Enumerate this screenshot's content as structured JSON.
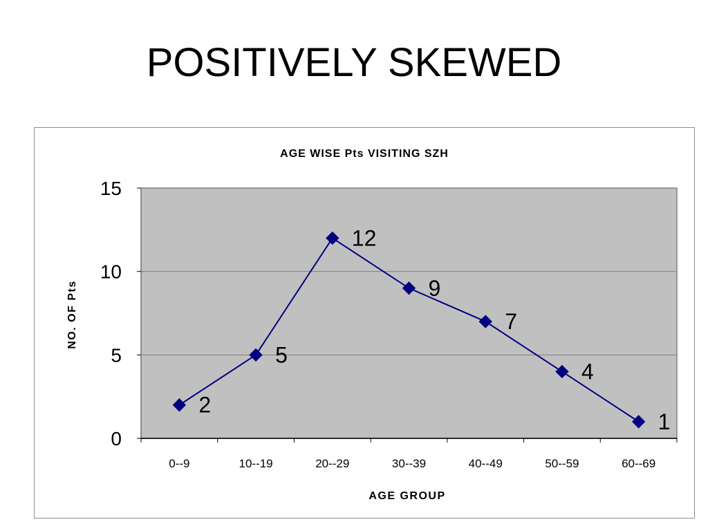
{
  "slide": {
    "title": "POSITIVELY SKEWED"
  },
  "colors": {
    "plot_bg": "#c0c0c0",
    "line": "#00007f",
    "marker": "#000080",
    "grid": "#808080",
    "text": "#000000"
  },
  "chart_data": {
    "type": "line",
    "title": "AGE WISE Pts VISITING SZH",
    "xlabel": "AGE GROUP",
    "ylabel": "NO. OF Pts",
    "categories": [
      "0--9",
      "10--19",
      "20--29",
      "30--39",
      "40--49",
      "50--59",
      "60--69"
    ],
    "series": [
      {
        "values": [
          2,
          5,
          12,
          9,
          7,
          4,
          1
        ]
      }
    ],
    "ylim": [
      0,
      15
    ],
    "yticks": [
      0,
      5,
      10,
      15
    ],
    "grid": true,
    "legend": "none",
    "marker": "diamond",
    "data_labels": true
  }
}
